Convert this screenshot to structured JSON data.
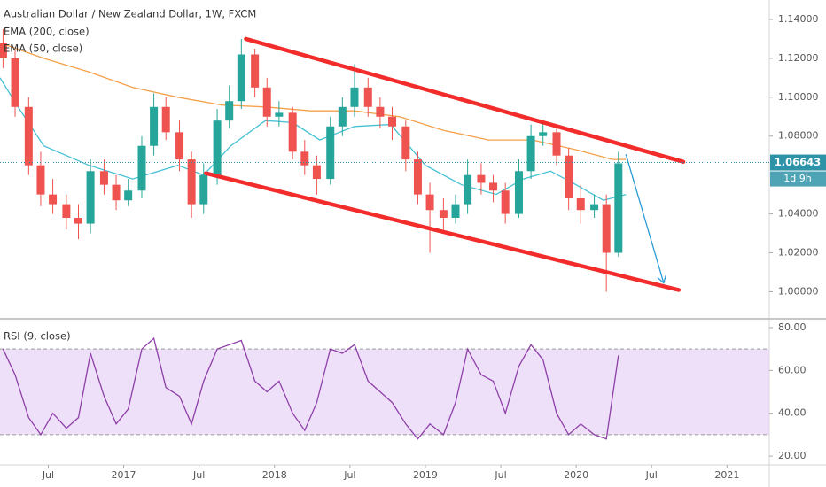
{
  "chart_data": [
    {
      "type": "candlestick",
      "title": "Australian Dollar / New Zealand Dollar, 1W, FXCM",
      "x": [
        2016.2,
        2016.28,
        2016.37,
        2016.45,
        2016.53,
        2016.62,
        2016.7,
        2016.78,
        2016.87,
        2016.95,
        2017.03,
        2017.12,
        2017.2,
        2017.28,
        2017.37,
        2017.45,
        2017.53,
        2017.62,
        2017.7,
        2017.78,
        2017.87,
        2017.95,
        2018.03,
        2018.12,
        2018.2,
        2018.28,
        2018.37,
        2018.45,
        2018.53,
        2018.62,
        2018.7,
        2018.78,
        2018.87,
        2018.95,
        2019.03,
        2019.12,
        2019.2,
        2019.28,
        2019.37,
        2019.45,
        2019.53,
        2019.62,
        2019.7,
        2019.78,
        2019.87,
        2019.95,
        2020.03,
        2020.12,
        2020.2,
        2020.28
      ],
      "open": [
        1.128,
        1.12,
        1.095,
        1.065,
        1.05,
        1.045,
        1.038,
        1.035,
        1.062,
        1.055,
        1.047,
        1.052,
        1.075,
        1.095,
        1.082,
        1.068,
        1.045,
        1.06,
        1.088,
        1.098,
        1.122,
        1.105,
        1.09,
        1.092,
        1.072,
        1.065,
        1.058,
        1.085,
        1.095,
        1.105,
        1.095,
        1.09,
        1.085,
        1.068,
        1.05,
        1.042,
        1.038,
        1.045,
        1.06,
        1.056,
        1.052,
        1.04,
        1.062,
        1.08,
        1.082,
        1.07,
        1.048,
        1.042,
        1.045,
        1.02
      ],
      "high": [
        1.135,
        1.124,
        1.1,
        1.072,
        1.058,
        1.05,
        1.045,
        1.068,
        1.068,
        1.06,
        1.058,
        1.08,
        1.102,
        1.1,
        1.088,
        1.072,
        1.066,
        1.094,
        1.106,
        1.13,
        1.125,
        1.11,
        1.098,
        1.095,
        1.078,
        1.07,
        1.09,
        1.1,
        1.117,
        1.11,
        1.1,
        1.095,
        1.088,
        1.072,
        1.056,
        1.048,
        1.05,
        1.068,
        1.066,
        1.06,
        1.056,
        1.068,
        1.086,
        1.088,
        1.085,
        1.074,
        1.055,
        1.05,
        1.05,
        1.072
      ],
      "low": [
        1.115,
        1.09,
        1.06,
        1.044,
        1.04,
        1.032,
        1.027,
        1.03,
        1.05,
        1.042,
        1.044,
        1.048,
        1.07,
        1.078,
        1.062,
        1.038,
        1.04,
        1.055,
        1.084,
        1.094,
        1.1,
        1.085,
        1.085,
        1.068,
        1.06,
        1.05,
        1.055,
        1.08,
        1.09,
        1.09,
        1.084,
        1.078,
        1.062,
        1.045,
        1.02,
        1.03,
        1.035,
        1.04,
        1.05,
        1.046,
        1.035,
        1.038,
        1.058,
        1.075,
        1.065,
        1.042,
        1.035,
        1.038,
        1.0,
        1.018
      ],
      "close": [
        1.12,
        1.095,
        1.065,
        1.05,
        1.045,
        1.038,
        1.035,
        1.062,
        1.055,
        1.047,
        1.052,
        1.075,
        1.095,
        1.082,
        1.068,
        1.045,
        1.06,
        1.088,
        1.098,
        1.122,
        1.105,
        1.09,
        1.092,
        1.072,
        1.065,
        1.058,
        1.085,
        1.095,
        1.105,
        1.095,
        1.09,
        1.085,
        1.068,
        1.05,
        1.042,
        1.038,
        1.045,
        1.06,
        1.056,
        1.052,
        1.04,
        1.062,
        1.08,
        1.082,
        1.07,
        1.048,
        1.042,
        1.045,
        1.02,
        1.066
      ],
      "up_color": "#26a69a",
      "down_color": "#ef5350",
      "series": [
        {
          "name": "EMA (200, close)",
          "color": "#f5a04a",
          "x": [
            2016.18,
            2016.47,
            2016.77,
            2017.06,
            2017.36,
            2017.65,
            2017.94,
            2018.24,
            2018.53,
            2018.83,
            2019.12,
            2019.42,
            2019.71,
            2020.0,
            2020.24,
            2020.33
          ],
          "values": [
            1.128,
            1.12,
            1.113,
            1.105,
            1.1,
            1.096,
            1.095,
            1.093,
            1.093,
            1.09,
            1.083,
            1.078,
            1.078,
            1.073,
            1.068,
            1.068
          ]
        },
        {
          "name": "EMA (50, close)",
          "color": "#46c1d4",
          "x": [
            2016.18,
            2016.3,
            2016.47,
            2016.77,
            2017.06,
            2017.36,
            2017.53,
            2017.71,
            2017.94,
            2018.12,
            2018.3,
            2018.53,
            2018.77,
            2019.0,
            2019.24,
            2019.47,
            2019.65,
            2019.83,
            2020.0,
            2020.18,
            2020.33
          ],
          "values": [
            1.11,
            1.095,
            1.075,
            1.065,
            1.058,
            1.065,
            1.06,
            1.075,
            1.088,
            1.087,
            1.078,
            1.085,
            1.086,
            1.065,
            1.055,
            1.05,
            1.058,
            1.062,
            1.055,
            1.047,
            1.05
          ]
        }
      ],
      "drawings": [
        {
          "color": "#f22b2b",
          "x": [
            2017.81,
            2020.71
          ],
          "y": [
            1.13,
            1.0668
          ]
        },
        {
          "color": "#f22b2b",
          "x": [
            2017.545,
            2020.68
          ],
          "y": [
            1.0609,
            1.0009
          ]
        },
        {
          "color": "#2a9bd6",
          "x": [
            2020.33,
            2020.58
          ],
          "y": [
            1.0705,
            1.0045
          ],
          "arrow": true
        }
      ],
      "last_price": 1.06643,
      "last_price_color": "#2f93a8",
      "countdown": "1d 9h",
      "xlim": [
        2016.18,
        2021.28
      ],
      "ylim": [
        0.987,
        1.15
      ],
      "yticks": [
        {
          "value": 1.14,
          "label": "1.14000"
        },
        {
          "value": 1.12,
          "label": "1.12000"
        },
        {
          "value": 1.1,
          "label": "1.10000"
        },
        {
          "value": 1.08,
          "label": "1.08000"
        },
        {
          "value": 1.04,
          "label": "1.04000"
        },
        {
          "value": 1.02,
          "label": "1.02000"
        },
        {
          "value": 1.0,
          "label": "1.00000"
        }
      ]
    },
    {
      "type": "line",
      "title": "RSI (9, close)",
      "x": [
        2016.2,
        2016.28,
        2016.37,
        2016.45,
        2016.53,
        2016.62,
        2016.7,
        2016.78,
        2016.87,
        2016.95,
        2017.03,
        2017.12,
        2017.2,
        2017.28,
        2017.37,
        2017.45,
        2017.53,
        2017.62,
        2017.7,
        2017.78,
        2017.87,
        2017.95,
        2018.03,
        2018.12,
        2018.2,
        2018.28,
        2018.37,
        2018.45,
        2018.53,
        2018.62,
        2018.7,
        2018.78,
        2018.87,
        2018.95,
        2019.03,
        2019.12,
        2019.2,
        2019.28,
        2019.37,
        2019.45,
        2019.53,
        2019.62,
        2019.7,
        2019.78,
        2019.87,
        2019.95,
        2020.03,
        2020.12,
        2020.2,
        2020.28
      ],
      "color": "#8e3fa8",
      "values": [
        70,
        58,
        38,
        30,
        40,
        33,
        38,
        68,
        48,
        35,
        42,
        70,
        75,
        52,
        48,
        35,
        55,
        70,
        72,
        74,
        55,
        50,
        55,
        40,
        32,
        45,
        70,
        68,
        72,
        55,
        50,
        45,
        35,
        28,
        35,
        30,
        45,
        70,
        58,
        55,
        40,
        62,
        72,
        65,
        40,
        30,
        35,
        30,
        28,
        67
      ],
      "bands": [
        30,
        70
      ],
      "band_color": "#e8d5f5",
      "xlim": [
        2016.18,
        2021.28
      ],
      "ylim": [
        15.9,
        83.3
      ],
      "yticks": [
        {
          "value": 80,
          "label": "80.00"
        },
        {
          "value": 60,
          "label": "60.00"
        },
        {
          "value": 40,
          "label": "40.00"
        },
        {
          "value": 20,
          "label": "20.00"
        }
      ],
      "xticks": [
        {
          "value": 2016.5,
          "label": "Jul"
        },
        2017,
        {
          "value": 2017.5,
          "label": "Jul"
        },
        2018,
        {
          "value": 2018.5,
          "label": "Jul"
        },
        2019,
        {
          "value": 2019.5,
          "label": "Jul"
        },
        2020,
        {
          "value": 2020.5,
          "label": "Jul"
        },
        2021
      ]
    }
  ]
}
